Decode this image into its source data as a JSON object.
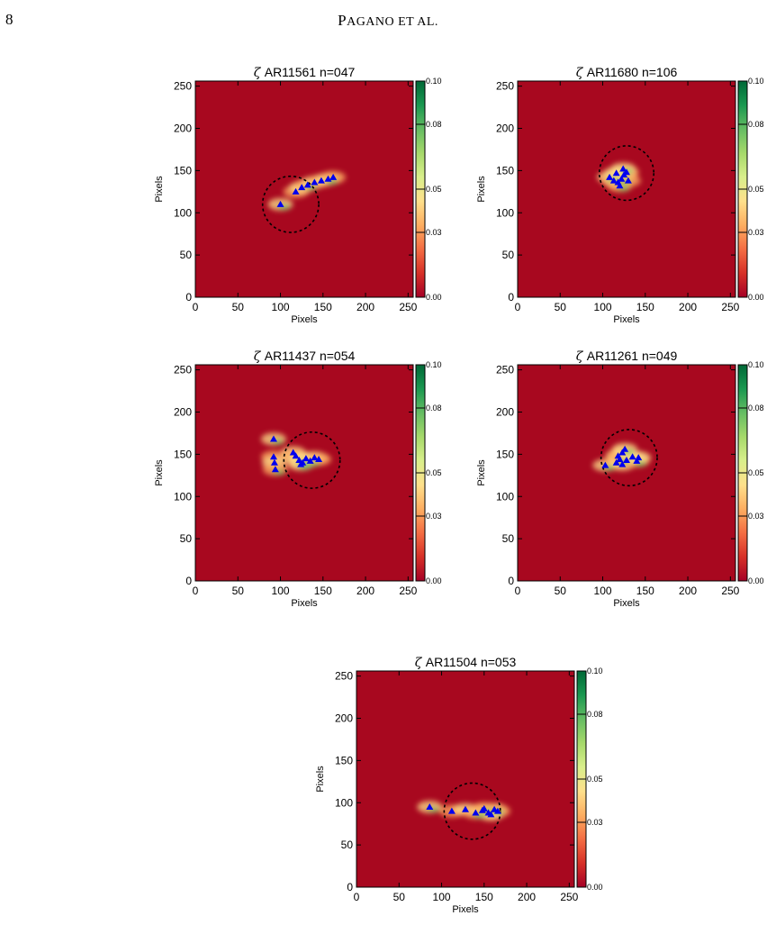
{
  "page": {
    "number": "8",
    "running_head_first": "P",
    "running_head_rest": "AGANO ET AL."
  },
  "axis_text": {
    "xlabel": "Pixels",
    "ylabel": "Pixels",
    "xticks": [
      "0",
      "50",
      "100",
      "150",
      "200",
      "250"
    ],
    "yticks": [
      "0",
      "50",
      "100",
      "150",
      "200",
      "250"
    ],
    "colorbar_ticks": [
      "0.00",
      "0.03",
      "0.05",
      "0.08",
      "0.10"
    ]
  },
  "chart_data": [
    {
      "type": "heatmap",
      "title_symbol": "ζ",
      "title": "AR11561  n=047",
      "xlabel": "Pixels",
      "ylabel": "Pixels",
      "xlim": [
        0,
        256
      ],
      "ylim": [
        0,
        256
      ],
      "colorbar": {
        "range": [
          0.0,
          0.1
        ],
        "ticks": [
          0.0,
          0.03,
          0.05,
          0.08,
          0.1
        ]
      },
      "circle": {
        "center": [
          112,
          110
        ],
        "radius": 33
      },
      "triangles": [
        [
          100,
          110
        ],
        [
          118,
          125
        ],
        [
          125,
          130
        ],
        [
          132,
          133
        ],
        [
          140,
          136
        ],
        [
          148,
          138
        ],
        [
          156,
          140
        ],
        [
          162,
          142
        ]
      ]
    },
    {
      "type": "heatmap",
      "title_symbol": "ζ",
      "title": "AR11680  n=106",
      "xlabel": "Pixels",
      "ylabel": "Pixels",
      "xlim": [
        0,
        256
      ],
      "ylim": [
        0,
        256
      ],
      "colorbar": {
        "range": [
          0.0,
          0.1
        ],
        "ticks": [
          0.0,
          0.03,
          0.05,
          0.08,
          0.1
        ]
      },
      "circle": {
        "center": [
          128,
          147
        ],
        "radius": 32
      },
      "triangles": [
        [
          108,
          142
        ],
        [
          113,
          138
        ],
        [
          118,
          136
        ],
        [
          122,
          140
        ],
        [
          125,
          145
        ],
        [
          128,
          148
        ],
        [
          124,
          152
        ],
        [
          130,
          138
        ],
        [
          116,
          147
        ],
        [
          120,
          132
        ]
      ]
    },
    {
      "type": "heatmap",
      "title_symbol": "ζ",
      "title": "AR11437  n=054",
      "xlabel": "Pixels",
      "ylabel": "Pixels",
      "xlim": [
        0,
        256
      ],
      "ylim": [
        0,
        256
      ],
      "colorbar": {
        "range": [
          0.0,
          0.1
        ],
        "ticks": [
          0.0,
          0.03,
          0.05,
          0.08,
          0.1
        ]
      },
      "circle": {
        "center": [
          137,
          143
        ],
        "radius": 33
      },
      "triangles": [
        [
          92,
          168
        ],
        [
          92,
          147
        ],
        [
          93,
          140
        ],
        [
          94,
          132
        ],
        [
          115,
          152
        ],
        [
          118,
          148
        ],
        [
          122,
          143
        ],
        [
          126,
          140
        ],
        [
          130,
          145
        ],
        [
          135,
          142
        ],
        [
          140,
          146
        ],
        [
          145,
          144
        ],
        [
          124,
          138
        ]
      ]
    },
    {
      "type": "heatmap",
      "title_symbol": "ζ",
      "title": "AR11261  n=049",
      "xlabel": "Pixels",
      "ylabel": "Pixels",
      "xlim": [
        0,
        256
      ],
      "ylim": [
        0,
        256
      ],
      "colorbar": {
        "range": [
          0.0,
          0.1
        ],
        "ticks": [
          0.0,
          0.03,
          0.05,
          0.08,
          0.1
        ]
      },
      "circle": {
        "center": [
          131,
          146
        ],
        "radius": 33
      },
      "triangles": [
        [
          103,
          137
        ],
        [
          116,
          140
        ],
        [
          118,
          148
        ],
        [
          120,
          144
        ],
        [
          123,
          138
        ],
        [
          123,
          152
        ],
        [
          126,
          156
        ],
        [
          128,
          143
        ],
        [
          135,
          147
        ],
        [
          140,
          142
        ],
        [
          142,
          146
        ]
      ]
    },
    {
      "type": "heatmap",
      "title_symbol": "ζ",
      "title": "AR11504  n=053",
      "xlabel": "Pixels",
      "ylabel": "Pixels",
      "xlim": [
        0,
        256
      ],
      "ylim": [
        0,
        256
      ],
      "colorbar": {
        "range": [
          0.0,
          0.1
        ],
        "ticks": [
          0.0,
          0.03,
          0.05,
          0.08,
          0.1
        ]
      },
      "circle": {
        "center": [
          136,
          90
        ],
        "radius": 33
      },
      "triangles": [
        [
          86,
          95
        ],
        [
          112,
          90
        ],
        [
          128,
          92
        ],
        [
          140,
          88
        ],
        [
          148,
          91
        ],
        [
          155,
          88
        ],
        [
          162,
          92
        ],
        [
          166,
          90
        ],
        [
          158,
          86
        ],
        [
          150,
          93
        ]
      ]
    }
  ],
  "colors": {
    "background_red": "#a8081f",
    "triangle_blue": "#0000ee",
    "colorbar_stops": [
      "#a50026",
      "#d73027",
      "#f46d43",
      "#fdae61",
      "#fee08b",
      "#d9ef8b",
      "#a6d96a",
      "#66bd63",
      "#1a9850",
      "#006837"
    ]
  }
}
